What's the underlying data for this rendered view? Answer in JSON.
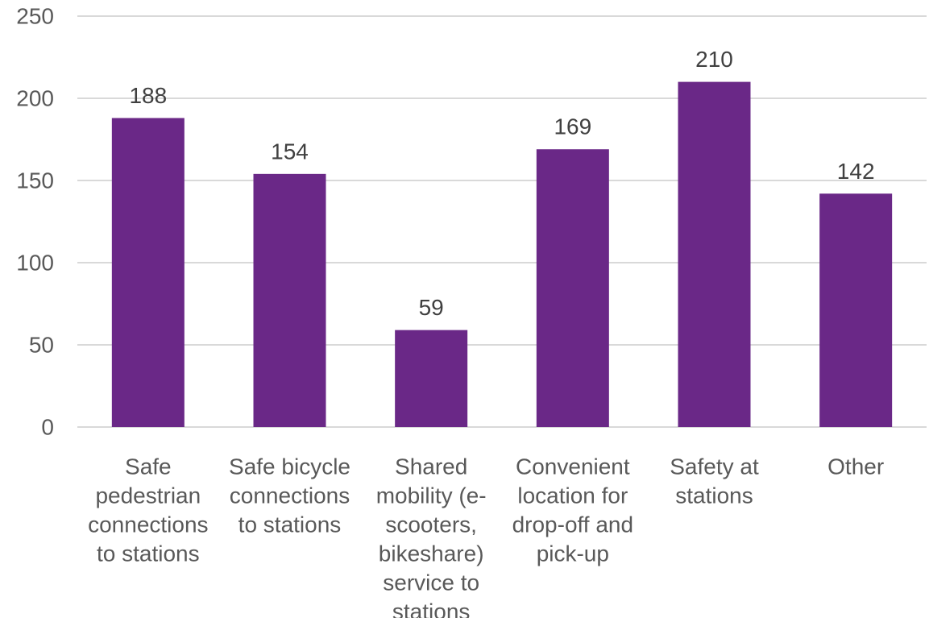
{
  "colors": {
    "bar": "#6a2887",
    "gridline": "#d9d9d9",
    "axis_line": "#d9d9d9"
  },
  "chart_data": {
    "type": "bar",
    "title": "",
    "xlabel": "",
    "ylabel": "",
    "ylim": [
      0,
      250
    ],
    "yticks": [
      0,
      50,
      100,
      150,
      200,
      250
    ],
    "grid": true,
    "legend": "none",
    "categories": [
      "Safe pedestrian connections to stations",
      "Safe bicycle connections to stations",
      "Shared mobility (e-scooters, bikeshare) service to stations",
      "Convenient location for drop-off and pick-up",
      "Safety at stations",
      "Other"
    ],
    "category_lines": [
      [
        "Safe",
        "pedestrian",
        "connections",
        "to stations"
      ],
      [
        "Safe bicycle",
        "connections",
        "to stations"
      ],
      [
        "Shared",
        "mobility (e-",
        "scooters,",
        "bikeshare)",
        "service to",
        "stations"
      ],
      [
        "Convenient",
        "location for",
        "drop-off and",
        "pick-up"
      ],
      [
        "Safety at",
        "stations"
      ],
      [
        "Other"
      ]
    ],
    "values": [
      188,
      154,
      59,
      169,
      210,
      142
    ]
  }
}
